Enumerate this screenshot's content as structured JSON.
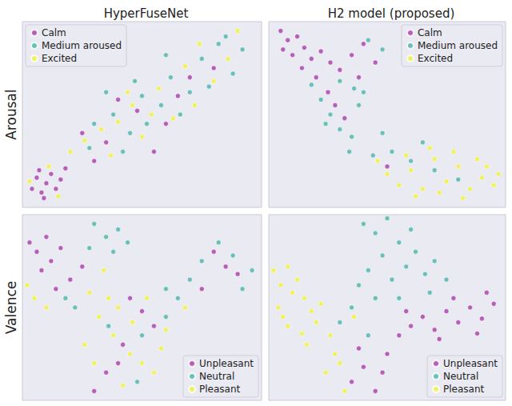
{
  "chart_data": [
    {
      "type": "scatter",
      "title": "HyperFuseNet",
      "ylabel": "Arousal",
      "xlim": [
        0,
        100
      ],
      "ylim": [
        0,
        100
      ],
      "tick_labels": false,
      "grid": false,
      "legend": "upper left",
      "marker": "circle",
      "series": [
        {
          "name": "Calm",
          "color": "#a83ca8",
          "values": [
            [
              4,
              10
            ],
            [
              6,
              16
            ],
            [
              8,
              8
            ],
            [
              10,
              13
            ],
            [
              12,
              18
            ],
            [
              7,
              20
            ],
            [
              14,
              10
            ],
            [
              16,
              15
            ],
            [
              9,
              5
            ],
            [
              18,
              21
            ],
            [
              25,
              40
            ],
            [
              35,
              35
            ],
            [
              48,
              52
            ],
            [
              60,
              45
            ],
            [
              70,
              70
            ],
            [
              55,
              30
            ],
            [
              40,
              58
            ],
            [
              80,
              75
            ],
            [
              65,
              60
            ],
            [
              30,
              25
            ]
          ]
        },
        {
          "name": "Medium aroused",
          "color": "#4ab5aa",
          "values": [
            [
              30,
              45
            ],
            [
              38,
              50
            ],
            [
              45,
              40
            ],
            [
              50,
              60
            ],
            [
              58,
              55
            ],
            [
              62,
              70
            ],
            [
              70,
              62
            ],
            [
              75,
              80
            ],
            [
              82,
              88
            ],
            [
              88,
              72
            ],
            [
              42,
              30
            ],
            [
              52,
              45
            ],
            [
              66,
              50
            ],
            [
              28,
              32
            ],
            [
              35,
              62
            ],
            [
              78,
              65
            ],
            [
              85,
              92
            ],
            [
              60,
              82
            ],
            [
              47,
              68
            ],
            [
              92,
              85
            ]
          ]
        },
        {
          "name": "Excited",
          "color": "#f2f23a",
          "values": [
            [
              3,
              14
            ],
            [
              11,
              22
            ],
            [
              15,
              6
            ],
            [
              20,
              30
            ],
            [
              26,
              36
            ],
            [
              33,
              42
            ],
            [
              40,
              46
            ],
            [
              46,
              55
            ],
            [
              54,
              50
            ],
            [
              57,
              64
            ],
            [
              63,
              48
            ],
            [
              68,
              76
            ],
            [
              72,
              55
            ],
            [
              80,
              68
            ],
            [
              86,
              80
            ],
            [
              50,
              38
            ],
            [
              37,
              28
            ],
            [
              90,
              95
            ],
            [
              74,
              88
            ],
            [
              44,
              62
            ]
          ]
        }
      ]
    },
    {
      "type": "scatter",
      "title": "H2 model (proposed)",
      "xlim": [
        0,
        100
      ],
      "ylim": [
        0,
        100
      ],
      "tick_labels": false,
      "grid": false,
      "legend": "upper right",
      "marker": "circle",
      "series": [
        {
          "name": "Calm",
          "color": "#a83ca8",
          "values": [
            [
              5,
              95
            ],
            [
              8,
              90
            ],
            [
              12,
              92
            ],
            [
              15,
              86
            ],
            [
              10,
              82
            ],
            [
              18,
              80
            ],
            [
              22,
              84
            ],
            [
              26,
              78
            ],
            [
              14,
              75
            ],
            [
              20,
              70
            ],
            [
              30,
              74
            ],
            [
              35,
              82
            ],
            [
              40,
              88
            ],
            [
              45,
              78
            ],
            [
              25,
              62
            ],
            [
              28,
              55
            ],
            [
              32,
              48
            ],
            [
              6,
              85
            ],
            [
              38,
              70
            ],
            [
              50,
              22
            ]
          ]
        },
        {
          "name": "Medium aroused",
          "color": "#4ab5aa",
          "values": [
            [
              42,
              90
            ],
            [
              48,
              85
            ],
            [
              30,
              68
            ],
            [
              22,
              58
            ],
            [
              26,
              50
            ],
            [
              30,
              42
            ],
            [
              35,
              38
            ],
            [
              24,
              45
            ],
            [
              38,
              55
            ],
            [
              34,
              30
            ],
            [
              44,
              28
            ],
            [
              52,
              30
            ],
            [
              60,
              25
            ],
            [
              70,
              20
            ],
            [
              40,
              62
            ],
            [
              48,
              40
            ],
            [
              80,
              15
            ],
            [
              18,
              66
            ],
            [
              36,
              64
            ],
            [
              65,
              35
            ]
          ]
        },
        {
          "name": "Excited",
          "color": "#f2f23a",
          "values": [
            [
              50,
              18
            ],
            [
              55,
              12
            ],
            [
              60,
              20
            ],
            [
              65,
              10
            ],
            [
              70,
              26
            ],
            [
              75,
              14
            ],
            [
              80,
              22
            ],
            [
              85,
              10
            ],
            [
              90,
              16
            ],
            [
              95,
              12
            ],
            [
              88,
              26
            ],
            [
              78,
              30
            ],
            [
              58,
              28
            ],
            [
              62,
              6
            ],
            [
              72,
              8
            ],
            [
              92,
              22
            ],
            [
              46,
              25
            ],
            [
              82,
              5
            ],
            [
              68,
              32
            ],
            [
              97,
              18
            ]
          ]
        }
      ]
    },
    {
      "type": "scatter",
      "ylabel": "Valence",
      "xlim": [
        0,
        100
      ],
      "ylim": [
        0,
        100
      ],
      "tick_labels": false,
      "grid": false,
      "legend": "lower right",
      "marker": "circle",
      "series": [
        {
          "name": "Unpleasant",
          "color": "#a83ca8",
          "values": [
            [
              3,
              85
            ],
            [
              6,
              80
            ],
            [
              10,
              88
            ],
            [
              12,
              75
            ],
            [
              16,
              82
            ],
            [
              8,
              70
            ],
            [
              20,
              65
            ],
            [
              14,
              60
            ],
            [
              25,
              72
            ],
            [
              45,
              55
            ],
            [
              50,
              48
            ],
            [
              80,
              80
            ],
            [
              85,
              72
            ],
            [
              90,
              68
            ],
            [
              75,
              60
            ],
            [
              42,
              30
            ],
            [
              35,
              15
            ],
            [
              40,
              20
            ],
            [
              55,
              40
            ],
            [
              30,
              5
            ]
          ]
        },
        {
          "name": "Neutral",
          "color": "#4ab5aa",
          "values": [
            [
              30,
              95
            ],
            [
              35,
              88
            ],
            [
              40,
              92
            ],
            [
              38,
              80
            ],
            [
              44,
              85
            ],
            [
              28,
              82
            ],
            [
              60,
              60
            ],
            [
              65,
              55
            ],
            [
              70,
              65
            ],
            [
              75,
              75
            ],
            [
              82,
              85
            ],
            [
              88,
              78
            ],
            [
              92,
              60
            ],
            [
              18,
              55
            ],
            [
              22,
              50
            ],
            [
              50,
              35
            ],
            [
              48,
              10
            ],
            [
              36,
              40
            ],
            [
              60,
              45
            ],
            [
              96,
              70
            ]
          ]
        },
        {
          "name": "Pleasant",
          "color": "#f2f23a",
          "values": [
            [
              2,
              62
            ],
            [
              5,
              55
            ],
            [
              10,
              50
            ],
            [
              28,
              58
            ],
            [
              32,
              45
            ],
            [
              36,
              55
            ],
            [
              40,
              50
            ],
            [
              38,
              35
            ],
            [
              45,
              25
            ],
            [
              50,
              20
            ],
            [
              42,
              8
            ],
            [
              30,
              20
            ],
            [
              55,
              15
            ],
            [
              58,
              28
            ],
            [
              60,
              38
            ],
            [
              26,
              30
            ],
            [
              52,
              55
            ],
            [
              68,
              50
            ],
            [
              34,
              70
            ],
            [
              46,
              42
            ]
          ]
        }
      ]
    },
    {
      "type": "scatter",
      "xlim": [
        0,
        100
      ],
      "ylim": [
        0,
        100
      ],
      "tick_labels": false,
      "grid": false,
      "legend": "lower right",
      "marker": "circle",
      "series": [
        {
          "name": "Unpleasant",
          "color": "#a83ca8",
          "values": [
            [
              60,
              40
            ],
            [
              65,
              45
            ],
            [
              70,
              38
            ],
            [
              75,
              48
            ],
            [
              80,
              42
            ],
            [
              85,
              50
            ],
            [
              90,
              44
            ],
            [
              95,
              52
            ],
            [
              88,
              36
            ],
            [
              78,
              55
            ],
            [
              55,
              35
            ],
            [
              35,
              10
            ],
            [
              40,
              18
            ],
            [
              45,
              5
            ],
            [
              50,
              25
            ],
            [
              38,
              28
            ],
            [
              48,
              15
            ],
            [
              92,
              58
            ],
            [
              72,
              33
            ],
            [
              58,
              48
            ]
          ]
        },
        {
          "name": "Neutral",
          "color": "#4ab5aa",
          "values": [
            [
              40,
              95
            ],
            [
              45,
              90
            ],
            [
              50,
              98
            ],
            [
              55,
              85
            ],
            [
              48,
              78
            ],
            [
              42,
              70
            ],
            [
              38,
              62
            ],
            [
              52,
              65
            ],
            [
              58,
              72
            ],
            [
              62,
              80
            ],
            [
              66,
              68
            ],
            [
              70,
              75
            ],
            [
              35,
              50
            ],
            [
              45,
              55
            ],
            [
              68,
              58
            ],
            [
              75,
              65
            ],
            [
              30,
              42
            ],
            [
              55,
              55
            ],
            [
              60,
              92
            ],
            [
              42,
              35
            ]
          ]
        },
        {
          "name": "Pleasant",
          "color": "#f2f23a",
          "values": [
            [
              2,
              70
            ],
            [
              5,
              62
            ],
            [
              8,
              72
            ],
            [
              10,
              58
            ],
            [
              4,
              50
            ],
            [
              12,
              65
            ],
            [
              15,
              55
            ],
            [
              18,
              48
            ],
            [
              22,
              52
            ],
            [
              8,
              40
            ],
            [
              14,
              36
            ],
            [
              20,
              42
            ],
            [
              26,
              35
            ],
            [
              28,
              25
            ],
            [
              24,
              15
            ],
            [
              30,
              20
            ],
            [
              16,
              30
            ],
            [
              6,
              45
            ],
            [
              32,
              5
            ],
            [
              36,
              45
            ]
          ]
        }
      ]
    }
  ]
}
